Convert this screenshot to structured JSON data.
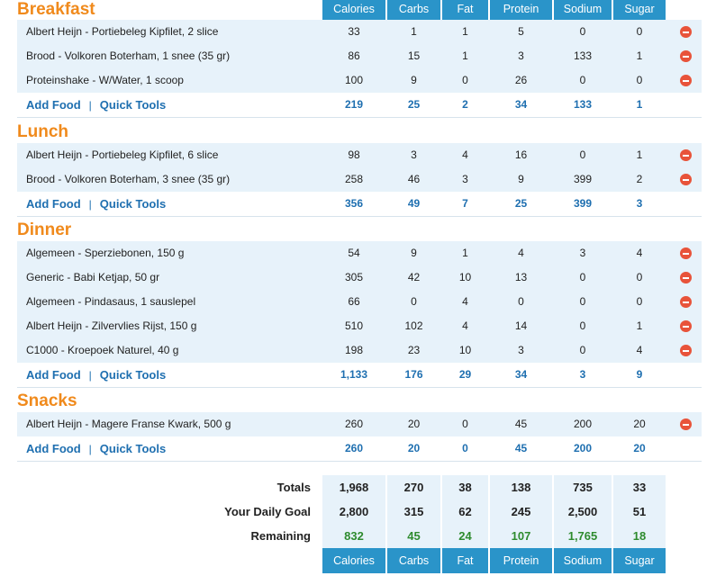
{
  "columns": [
    "Calories",
    "Carbs",
    "Fat",
    "Protein",
    "Sodium",
    "Sugar"
  ],
  "meals": [
    {
      "title": "Breakfast",
      "items": [
        {
          "name": "Albert Heijn - Portiebeleg Kipfilet, 2 slice",
          "values": [
            "33",
            "1",
            "1",
            "5",
            "0",
            "0"
          ]
        },
        {
          "name": "Brood - Volkoren Boterham, 1 snee (35 gr)",
          "values": [
            "86",
            "15",
            "1",
            "3",
            "133",
            "1"
          ]
        },
        {
          "name": "Proteinshake - W/Water, 1 scoop",
          "values": [
            "100",
            "9",
            "0",
            "26",
            "0",
            "0"
          ]
        }
      ],
      "totals": [
        "219",
        "25",
        "2",
        "34",
        "133",
        "1"
      ]
    },
    {
      "title": "Lunch",
      "items": [
        {
          "name": "Albert Heijn - Portiebeleg Kipfilet, 6 slice",
          "values": [
            "98",
            "3",
            "4",
            "16",
            "0",
            "1"
          ]
        },
        {
          "name": "Brood - Volkoren Boterham, 3 snee (35 gr)",
          "values": [
            "258",
            "46",
            "3",
            "9",
            "399",
            "2"
          ]
        }
      ],
      "totals": [
        "356",
        "49",
        "7",
        "25",
        "399",
        "3"
      ]
    },
    {
      "title": "Dinner",
      "items": [
        {
          "name": "Algemeen - Sperziebonen, 150 g",
          "values": [
            "54",
            "9",
            "1",
            "4",
            "3",
            "4"
          ]
        },
        {
          "name": "Generic - Babi Ketjap, 50 gr",
          "values": [
            "305",
            "42",
            "10",
            "13",
            "0",
            "0"
          ]
        },
        {
          "name": "Algemeen - Pindasaus, 1 sauslepel",
          "values": [
            "66",
            "0",
            "4",
            "0",
            "0",
            "0"
          ]
        },
        {
          "name": "Albert Heijn - Zilvervlies Rijst, 150 g",
          "values": [
            "510",
            "102",
            "4",
            "14",
            "0",
            "1"
          ]
        },
        {
          "name": "C1000 - Kroepoek Naturel, 40 g",
          "values": [
            "198",
            "23",
            "10",
            "3",
            "0",
            "4"
          ]
        }
      ],
      "totals": [
        "1,133",
        "176",
        "29",
        "34",
        "3",
        "9"
      ]
    },
    {
      "title": "Snacks",
      "items": [
        {
          "name": "Albert Heijn - Magere Franse Kwark, 500 g",
          "values": [
            "260",
            "20",
            "0",
            "45",
            "200",
            "20"
          ]
        }
      ],
      "totals": [
        "260",
        "20",
        "0",
        "45",
        "200",
        "20"
      ]
    }
  ],
  "add_food_label": "Add Food",
  "quick_tools_label": "Quick Tools",
  "separator": "|",
  "summary": [
    {
      "label": "Totals",
      "values": [
        "1,968",
        "270",
        "38",
        "138",
        "735",
        "33"
      ]
    },
    {
      "label": "Your Daily Goal",
      "values": [
        "2,800",
        "315",
        "62",
        "245",
        "2,500",
        "51"
      ]
    },
    {
      "label": "Remaining",
      "values": [
        "832",
        "45",
        "24",
        "107",
        "1,765",
        "18"
      ]
    }
  ],
  "colors": {
    "header_bg": "#2a94c9",
    "meal_title": "#f08a1c",
    "link": "#1e6fb0",
    "remaining": "#2e8b2e",
    "delete": "#e8533a"
  }
}
